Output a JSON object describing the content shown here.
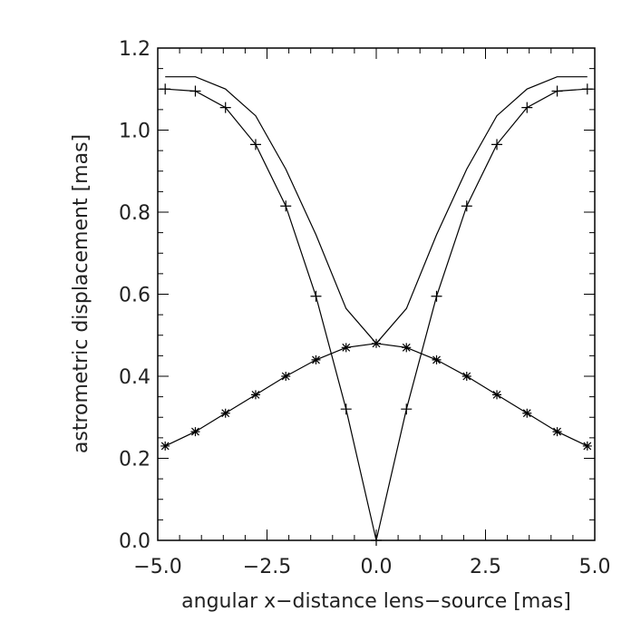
{
  "chart_data": {
    "type": "line",
    "title": "",
    "xlabel": "angular x−distance lens−source [mas]",
    "ylabel": "astrometric displacement [mas]",
    "xlim": [
      -5.0,
      5.0
    ],
    "ylim": [
      0.0,
      1.2
    ],
    "x_ticks": [
      "−5.0",
      "−2.5",
      "0.0",
      "2.5",
      "5.0"
    ],
    "y_ticks": [
      "0.0",
      "0.2",
      "0.4",
      "0.6",
      "0.8",
      "1.0",
      "1.2"
    ],
    "grid": false,
    "legend": null,
    "x": [
      -4.83,
      -4.14,
      -3.45,
      -2.76,
      -2.07,
      -1.38,
      -0.69,
      0.0,
      0.69,
      1.38,
      2.07,
      2.76,
      3.45,
      4.14,
      4.83
    ],
    "series": [
      {
        "name": "upper curve (no markers)",
        "marker": "none",
        "values": [
          1.13,
          1.13,
          1.1,
          1.035,
          0.905,
          0.745,
          0.565,
          0.48,
          0.565,
          0.745,
          0.905,
          1.035,
          1.1,
          1.13,
          1.13
        ]
      },
      {
        "name": "plus-marker curve",
        "marker": "plus",
        "values": [
          1.1,
          1.095,
          1.055,
          0.965,
          0.815,
          0.595,
          0.32,
          0.0,
          0.32,
          0.595,
          0.815,
          0.965,
          1.055,
          1.095,
          1.1
        ]
      },
      {
        "name": "asterisk-marker curve",
        "marker": "asterisk",
        "values": [
          0.23,
          0.265,
          0.31,
          0.355,
          0.4,
          0.44,
          0.47,
          0.48,
          0.47,
          0.44,
          0.4,
          0.355,
          0.31,
          0.265,
          0.23
        ]
      }
    ]
  },
  "colors": {
    "line": "#000000",
    "axis": "#000000",
    "text": "#222222",
    "background": "#ffffff"
  }
}
